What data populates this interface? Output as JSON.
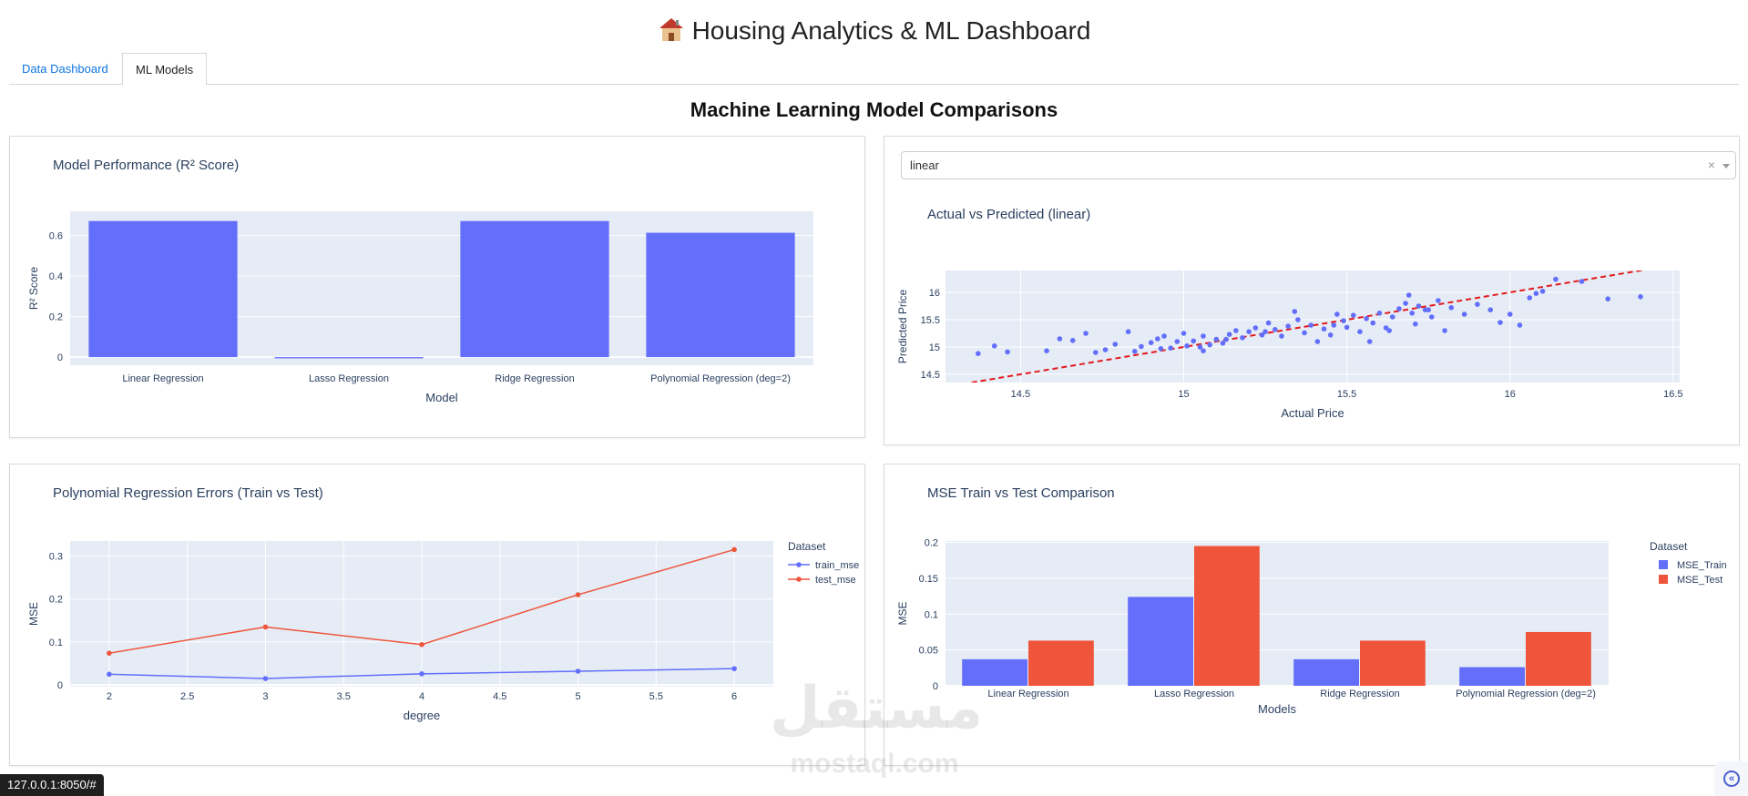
{
  "header": {
    "title": "Housing Analytics & ML Dashboard",
    "icon": "house-icon"
  },
  "tabs": [
    {
      "label": "Data Dashboard",
      "active": false
    },
    {
      "label": "ML Models",
      "active": true
    }
  ],
  "section_title": "Machine Learning Model Comparisons",
  "dropdown": {
    "value": "linear"
  },
  "status_url": "127.0.0.1:8050/#",
  "watermark": {
    "arabic": "مستقل",
    "latin": "mostaql.com"
  },
  "chart_data": [
    {
      "type": "bar",
      "title": "Model Performance (R² Score)",
      "xlabel": "Model",
      "ylabel": "R² Score",
      "categories": [
        "Linear Regression",
        "Lasso Regression",
        "Ridge Regression",
        "Polynomial Regression (deg=2)"
      ],
      "values": [
        0.672,
        -0.006,
        0.672,
        0.614
      ],
      "ylim": [
        -0.04,
        0.72
      ],
      "yticks": [
        0,
        0.2,
        0.4,
        0.6
      ],
      "color": "#636efa"
    },
    {
      "type": "scatter",
      "title": "Actual vs Predicted (linear)",
      "xlabel": "Actual Price",
      "ylabel": "Predicted Price",
      "xlim": [
        14.27,
        16.52
      ],
      "ylim": [
        14.35,
        16.4
      ],
      "xticks": [
        14.5,
        15,
        15.5,
        16,
        16.5
      ],
      "yticks": [
        14.5,
        15,
        15.5,
        16
      ],
      "reference_line": {
        "from": [
          14.35,
          14.35
        ],
        "to": [
          16.5,
          16.5
        ],
        "color": "#e31a1c",
        "dash": true
      },
      "color": "#636efa",
      "points": [
        [
          14.37,
          14.88
        ],
        [
          14.42,
          15.02
        ],
        [
          14.46,
          14.91
        ],
        [
          14.58,
          14.93
        ],
        [
          14.62,
          15.15
        ],
        [
          14.66,
          15.12
        ],
        [
          14.7,
          15.25
        ],
        [
          14.73,
          14.9
        ],
        [
          14.76,
          14.95
        ],
        [
          14.79,
          15.05
        ],
        [
          14.83,
          15.28
        ],
        [
          14.85,
          14.92
        ],
        [
          14.87,
          15.01
        ],
        [
          14.9,
          15.08
        ],
        [
          14.92,
          15.15
        ],
        [
          14.94,
          15.2
        ],
        [
          14.96,
          14.98
        ],
        [
          14.98,
          15.1
        ],
        [
          15.0,
          15.25
        ],
        [
          15.01,
          15.02
        ],
        [
          15.03,
          15.11
        ],
        [
          15.05,
          15.0
        ],
        [
          15.06,
          15.2
        ],
        [
          15.08,
          15.04
        ],
        [
          15.1,
          15.14
        ],
        [
          15.12,
          15.07
        ],
        [
          15.14,
          15.23
        ],
        [
          15.16,
          15.3
        ],
        [
          15.18,
          15.17
        ],
        [
          15.2,
          15.28
        ],
        [
          15.22,
          15.35
        ],
        [
          15.24,
          15.22
        ],
        [
          15.26,
          15.44
        ],
        [
          15.28,
          15.32
        ],
        [
          15.3,
          15.2
        ],
        [
          15.32,
          15.38
        ],
        [
          15.34,
          15.65
        ],
        [
          15.35,
          15.5
        ],
        [
          15.37,
          15.26
        ],
        [
          15.39,
          15.4
        ],
        [
          15.41,
          15.1
        ],
        [
          15.43,
          15.33
        ],
        [
          15.45,
          15.22
        ],
        [
          15.47,
          15.6
        ],
        [
          15.49,
          15.48
        ],
        [
          15.5,
          15.36
        ],
        [
          15.52,
          15.58
        ],
        [
          15.54,
          15.28
        ],
        [
          15.56,
          15.52
        ],
        [
          15.58,
          15.44
        ],
        [
          15.6,
          15.62
        ],
        [
          15.62,
          15.35
        ],
        [
          15.64,
          15.55
        ],
        [
          15.66,
          15.7
        ],
        [
          15.68,
          15.8
        ],
        [
          15.69,
          15.95
        ],
        [
          15.7,
          15.62
        ],
        [
          15.71,
          15.42
        ],
        [
          15.72,
          15.75
        ],
        [
          15.74,
          15.68
        ],
        [
          15.76,
          15.55
        ],
        [
          15.78,
          15.85
        ],
        [
          15.8,
          15.3
        ],
        [
          15.82,
          15.72
        ],
        [
          15.86,
          15.6
        ],
        [
          15.9,
          15.78
        ],
        [
          15.94,
          15.68
        ],
        [
          15.97,
          15.45
        ],
        [
          16.0,
          15.6
        ],
        [
          16.03,
          15.4
        ],
        [
          16.06,
          15.9
        ],
        [
          16.08,
          15.98
        ],
        [
          16.1,
          16.02
        ],
        [
          16.14,
          16.24
        ],
        [
          16.22,
          16.2
        ],
        [
          16.3,
          15.88
        ],
        [
          16.4,
          15.92
        ],
        [
          14.93,
          14.97
        ],
        [
          15.13,
          15.14
        ],
        [
          15.25,
          15.28
        ],
        [
          15.57,
          15.1
        ],
        [
          15.63,
          15.3
        ],
        [
          15.75,
          15.68
        ],
        [
          15.06,
          14.93
        ],
        [
          15.46,
          15.4
        ]
      ]
    },
    {
      "type": "line",
      "title": "Polynomial Regression Errors (Train vs Test)",
      "xlabel": "degree",
      "ylabel": "MSE",
      "legend_title": "Dataset",
      "x": [
        2,
        3,
        4,
        5,
        6
      ],
      "xticks": [
        2,
        2.5,
        3,
        3.5,
        4,
        4.5,
        5,
        5.5,
        6
      ],
      "yticks": [
        0,
        0.1,
        0.2,
        0.3
      ],
      "xlim": [
        1.75,
        6.25
      ],
      "ylim": [
        -0.004,
        0.335
      ],
      "series": [
        {
          "name": "train_mse",
          "values": [
            0.025,
            0.015,
            0.026,
            0.032,
            0.038
          ],
          "color": "#636efa"
        },
        {
          "name": "test_mse",
          "values": [
            0.074,
            0.135,
            0.094,
            0.21,
            0.315
          ],
          "color": "#ef553b"
        }
      ]
    },
    {
      "type": "bar",
      "title": "MSE Train vs Test Comparison",
      "xlabel": "Models",
      "ylabel": "MSE",
      "legend_title": "Dataset",
      "categories": [
        "Linear Regression",
        "Lasso Regression",
        "Ridge Regression",
        "Polynomial Regression (deg=2)"
      ],
      "yticks": [
        0,
        0.05,
        0.1,
        0.15,
        0.2
      ],
      "ylim": [
        0,
        0.202
      ],
      "series": [
        {
          "name": "MSE_Train",
          "values": [
            0.037,
            0.124,
            0.037,
            0.026
          ],
          "color": "#636efa"
        },
        {
          "name": "MSE_Test",
          "values": [
            0.063,
            0.195,
            0.063,
            0.075
          ],
          "color": "#ef553b"
        }
      ]
    }
  ]
}
